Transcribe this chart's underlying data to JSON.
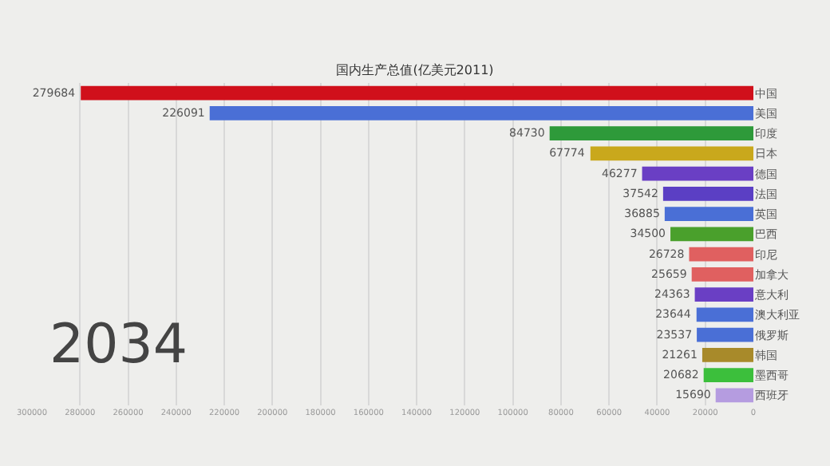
{
  "chart_data": {
    "type": "bar",
    "orientation": "horizontal",
    "title": "国内生产总值(亿美元2011)",
    "categories": [
      "中国",
      "美国",
      "印度",
      "日本",
      "德国",
      "法国",
      "英国",
      "巴西",
      "印尼",
      "加拿大",
      "意大利",
      "澳大利亚",
      "俄罗斯",
      "韩国",
      "墨西哥",
      "西班牙"
    ],
    "values": [
      279684,
      226091,
      84730,
      67774,
      46277,
      37542,
      36885,
      34500,
      26728,
      25659,
      24363,
      23644,
      23537,
      21261,
      20682,
      15690
    ],
    "colors": [
      "#d0101b",
      "#4a6fd6",
      "#2e9a3a",
      "#c9a81c",
      "#6a3fc4",
      "#5b3fc4",
      "#4a6fd6",
      "#4aa02c",
      "#e06060",
      "#e06060",
      "#6a3fc4",
      "#4a6fd6",
      "#4a6fd6",
      "#a88a2a",
      "#3cbf3c",
      "#b59ce0"
    ],
    "data_labels": true,
    "xlim": [
      300000,
      0
    ],
    "xticks": [
      0,
      20000,
      40000,
      60000,
      80000,
      100000,
      120000,
      140000,
      160000,
      180000,
      200000,
      220000,
      240000,
      260000,
      280000,
      300000
    ],
    "grid": "x",
    "annotations": [
      "2034"
    ]
  }
}
